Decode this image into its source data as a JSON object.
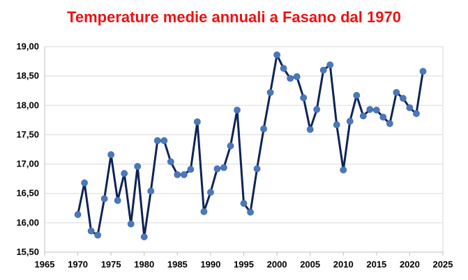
{
  "chart_data": {
    "type": "line",
    "title": "Temperature medie annuali a Fasano dal 1970",
    "title_color": "#ee1111",
    "line_color": "#0d2456",
    "marker_color": "#4a78bd",
    "grid_color": "#d9d9d9",
    "grid": true,
    "legend": false,
    "xlabel": "",
    "ylabel": "",
    "xlim": [
      1965,
      2025
    ],
    "ylim": [
      15.5,
      19.0
    ],
    "x_ticks": [
      1965,
      1970,
      1975,
      1980,
      1985,
      1990,
      1995,
      2000,
      2005,
      2010,
      2015,
      2020,
      2025
    ],
    "y_ticks": [
      "15,50",
      "16,00",
      "16,50",
      "17,00",
      "17,50",
      "18,00",
      "18,50",
      "19,00"
    ],
    "y_tick_values": [
      15.5,
      16.0,
      16.5,
      17.0,
      17.5,
      18.0,
      18.5,
      19.0
    ],
    "series": [
      {
        "name": "",
        "x": [
          1970,
          1971,
          1972,
          1973,
          1974,
          1975,
          1976,
          1977,
          1978,
          1979,
          1980,
          1981,
          1982,
          1983,
          1984,
          1985,
          1986,
          1987,
          1988,
          1989,
          1990,
          1991,
          1992,
          1993,
          1994,
          1995,
          1996,
          1997,
          1998,
          1999,
          2000,
          2001,
          2002,
          2003,
          2004,
          2005,
          2006,
          2007,
          2008,
          2009,
          2010,
          2011,
          2012,
          2013,
          2014,
          2015,
          2016,
          2017,
          2018,
          2019,
          2020,
          2021,
          2022
        ],
        "values": [
          16.14,
          16.68,
          15.86,
          15.79,
          16.41,
          17.16,
          16.38,
          16.84,
          15.98,
          16.96,
          15.76,
          16.54,
          17.4,
          17.4,
          17.04,
          16.82,
          16.82,
          16.91,
          17.72,
          16.19,
          16.52,
          16.92,
          16.94,
          17.31,
          17.92,
          16.33,
          16.18,
          16.92,
          17.6,
          18.22,
          18.86,
          18.63,
          18.46,
          18.49,
          18.13,
          17.59,
          17.93,
          18.6,
          18.69,
          17.67,
          16.9,
          17.73,
          18.17,
          17.82,
          17.93,
          17.92,
          17.8,
          17.69,
          18.22,
          18.12,
          17.96,
          17.86,
          18.58
        ]
      }
    ]
  }
}
